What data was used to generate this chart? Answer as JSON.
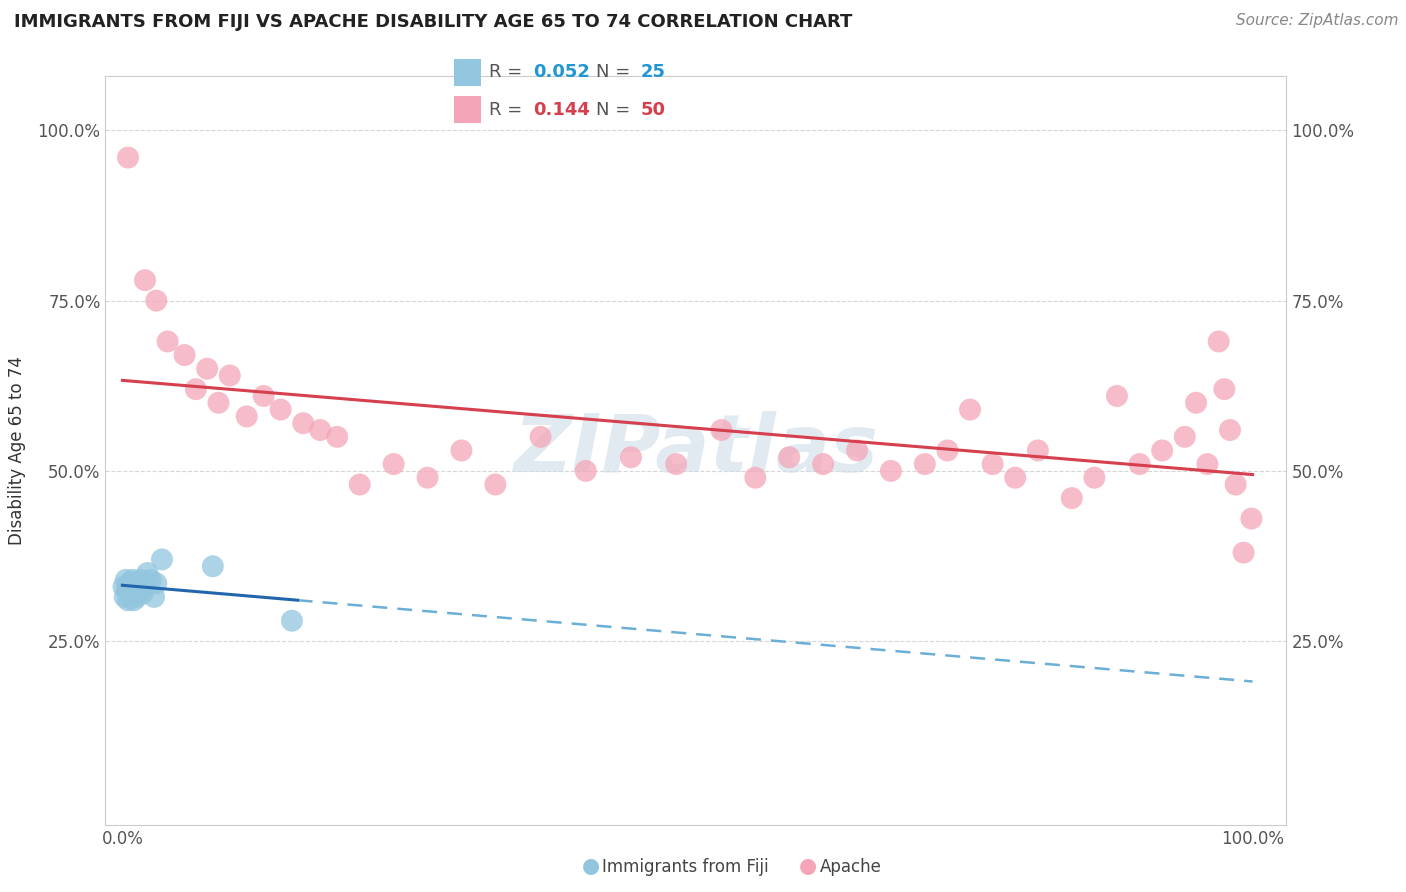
{
  "title": "IMMIGRANTS FROM FIJI VS APACHE DISABILITY AGE 65 TO 74 CORRELATION CHART",
  "source": "Source: ZipAtlas.com",
  "ylabel": "Disability Age 65 to 74",
  "legend_label_1": "Immigrants from Fiji",
  "legend_label_2": "Apache",
  "r1": "0.052",
  "n1": "25",
  "r2": "0.144",
  "n2": "50",
  "blue_color": "#92c5de",
  "pink_color": "#f4a6b8",
  "blue_line_color": "#2166ac",
  "pink_line_color": "#d6404e",
  "blue_dashed_color": "#6baed6",
  "blue_scatter_x": [
    0.001,
    0.002,
    0.003,
    0.004,
    0.005,
    0.006,
    0.007,
    0.008,
    0.009,
    0.01,
    0.011,
    0.012,
    0.013,
    0.014,
    0.015,
    0.016,
    0.018,
    0.02,
    0.022,
    0.025,
    0.028,
    0.03,
    0.035,
    0.08,
    0.15
  ],
  "blue_scatter_y": [
    0.33,
    0.315,
    0.34,
    0.325,
    0.31,
    0.335,
    0.32,
    0.33,
    0.34,
    0.31,
    0.325,
    0.335,
    0.315,
    0.33,
    0.325,
    0.34,
    0.32,
    0.33,
    0.35,
    0.34,
    0.315,
    0.335,
    0.37,
    0.36,
    0.28
  ],
  "pink_scatter_x": [
    0.005,
    0.02,
    0.03,
    0.04,
    0.055,
    0.065,
    0.075,
    0.085,
    0.095,
    0.11,
    0.125,
    0.14,
    0.16,
    0.175,
    0.19,
    0.21,
    0.24,
    0.27,
    0.3,
    0.33,
    0.37,
    0.41,
    0.45,
    0.49,
    0.53,
    0.56,
    0.59,
    0.62,
    0.65,
    0.68,
    0.71,
    0.73,
    0.75,
    0.77,
    0.79,
    0.81,
    0.84,
    0.86,
    0.88,
    0.9,
    0.92,
    0.94,
    0.95,
    0.96,
    0.97,
    0.975,
    0.98,
    0.985,
    0.992,
    0.999
  ],
  "pink_scatter_y": [
    0.96,
    0.78,
    0.75,
    0.69,
    0.67,
    0.62,
    0.65,
    0.6,
    0.64,
    0.58,
    0.61,
    0.59,
    0.57,
    0.56,
    0.55,
    0.48,
    0.51,
    0.49,
    0.53,
    0.48,
    0.55,
    0.5,
    0.52,
    0.51,
    0.56,
    0.49,
    0.52,
    0.51,
    0.53,
    0.5,
    0.51,
    0.53,
    0.59,
    0.51,
    0.49,
    0.53,
    0.46,
    0.49,
    0.61,
    0.51,
    0.53,
    0.55,
    0.6,
    0.51,
    0.69,
    0.62,
    0.56,
    0.48,
    0.38,
    0.43
  ],
  "xlim": [
    -0.015,
    1.03
  ],
  "ylim": [
    -0.02,
    1.08
  ],
  "yticks": [
    0.25,
    0.5,
    0.75,
    1.0
  ],
  "xticks": [
    0.0,
    1.0
  ],
  "background_color": "#ffffff",
  "grid_color": "#cccccc",
  "watermark_text": "ZIPatlas",
  "watermark_color": "#d0dce8",
  "title_fontsize": 13,
  "source_fontsize": 11,
  "tick_fontsize": 12,
  "label_fontsize": 12
}
